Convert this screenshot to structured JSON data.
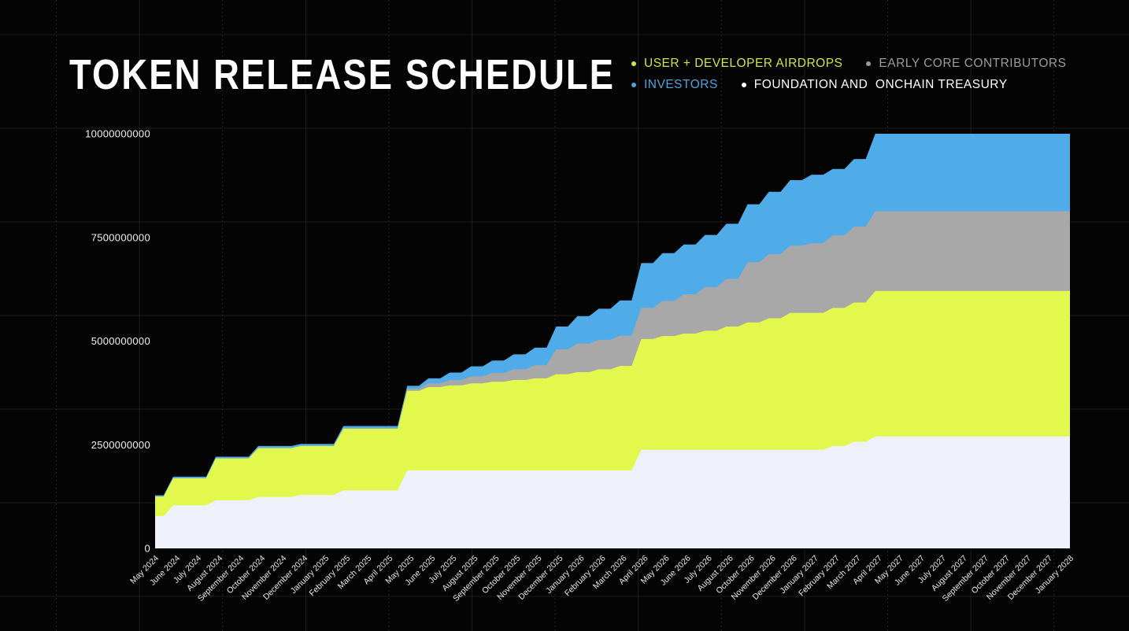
{
  "header": {
    "title": "TOKEN RELEASE SCHEDULE"
  },
  "legend": [
    {
      "label": "USER + DEVELOPER AIRDROPS",
      "color": "#CDE83E"
    },
    {
      "label": "EARLY CORE CONTRIBUTORS",
      "color": "#9B9B9B"
    },
    {
      "label": "INVESTORS",
      "color": "#4FA3DC"
    },
    {
      "label": "FOUNDATION AND  ONCHAIN TREASURY",
      "color": "#FFFFFF"
    }
  ],
  "chart_data": {
    "type": "area",
    "stacked": true,
    "title": "TOKEN RELEASE SCHEDULE",
    "xlabel": "",
    "ylabel": "",
    "units": "tokens (values in billions)",
    "value_scale": 1000000000,
    "ylim": [
      0,
      10000000000
    ],
    "y_ticks": {
      "values": [
        0,
        2.5,
        5,
        7.5,
        10
      ],
      "labels": [
        "0",
        "2500000000",
        "5000000000",
        "7500000000",
        "10000000000"
      ]
    },
    "x_axis_label_rotation": -45,
    "grid": "decorative background grid only",
    "legend_position": "top-right",
    "categories": [
      "May 2024",
      "June 2024",
      "July 2024",
      "August 2024",
      "September 2024",
      "October 2024",
      "November 2024",
      "December 2024",
      "January 2025",
      "February 2025",
      "March 2025",
      "April 2025",
      "May 2025",
      "June 2025",
      "July 2025",
      "August 2025",
      "September 2025",
      "October 2025",
      "November 2025",
      "December 2025",
      "January 2026",
      "February 2026",
      "March 2026",
      "April 2026",
      "May 2026",
      "June 2026",
      "July 2026",
      "August 2026",
      "October 2026",
      "November 2026",
      "December 2026",
      "January 2027",
      "February 2027",
      "March 2027",
      "April 2027",
      "May 2027",
      "June 2027",
      "July 2027",
      "August 2027",
      "September 2027",
      "October 2027",
      "November 2027",
      "December 2027",
      "January 2028"
    ],
    "series": [
      {
        "name": "FOUNDATION AND ONCHAIN TREASURY",
        "color": "#EEF1FA",
        "values": [
          0.78,
          1.04,
          1.04,
          1.16,
          1.16,
          1.24,
          1.24,
          1.29,
          1.29,
          1.4,
          1.4,
          1.4,
          1.88,
          1.88,
          1.88,
          1.88,
          1.88,
          1.88,
          1.88,
          1.88,
          1.88,
          1.88,
          1.88,
          2.38,
          2.38,
          2.38,
          2.38,
          2.38,
          2.38,
          2.38,
          2.38,
          2.38,
          2.47,
          2.57,
          2.7,
          2.7,
          2.7,
          2.7,
          2.7,
          2.7,
          2.7,
          2.7,
          2.7,
          2.7
        ]
      },
      {
        "name": "USER + DEVELOPER AIRDROPS",
        "color": "#E2F84D",
        "values": [
          0.47,
          0.65,
          0.65,
          1.01,
          1.01,
          1.18,
          1.18,
          1.18,
          1.18,
          1.49,
          1.49,
          1.49,
          1.92,
          2.01,
          2.05,
          2.1,
          2.14,
          2.18,
          2.22,
          2.32,
          2.37,
          2.44,
          2.52,
          2.67,
          2.74,
          2.8,
          2.87,
          2.97,
          3.07,
          3.17,
          3.3,
          3.3,
          3.33,
          3.36,
          3.51,
          3.51,
          3.51,
          3.51,
          3.51,
          3.51,
          3.51,
          3.51,
          3.51,
          3.51
        ]
      },
      {
        "name": "EARLY CORE CONTRIBUTORS",
        "color": "#A8A8A8",
        "values": [
          0,
          0,
          0,
          0,
          0,
          0,
          0,
          0,
          0,
          0,
          0,
          0,
          0.05,
          0.09,
          0.13,
          0.17,
          0.21,
          0.26,
          0.32,
          0.6,
          0.69,
          0.71,
          0.73,
          0.75,
          0.85,
          0.95,
          1.05,
          1.15,
          1.45,
          1.55,
          1.62,
          1.68,
          1.75,
          1.83,
          1.92,
          1.92,
          1.92,
          1.92,
          1.92,
          1.92,
          1.92,
          1.92,
          1.92,
          1.92
        ]
      },
      {
        "name": "INVESTORS",
        "color": "#4FACE8",
        "values": [
          0.03,
          0.04,
          0.04,
          0.04,
          0.04,
          0.05,
          0.05,
          0.05,
          0.05,
          0.06,
          0.06,
          0.06,
          0.07,
          0.12,
          0.18,
          0.24,
          0.3,
          0.36,
          0.42,
          0.55,
          0.66,
          0.75,
          0.85,
          1.08,
          1.15,
          1.2,
          1.26,
          1.33,
          1.4,
          1.5,
          1.58,
          1.65,
          1.6,
          1.63,
          1.87,
          1.87,
          1.87,
          1.87,
          1.87,
          1.87,
          1.87,
          1.87,
          1.87,
          1.87
        ]
      }
    ]
  }
}
